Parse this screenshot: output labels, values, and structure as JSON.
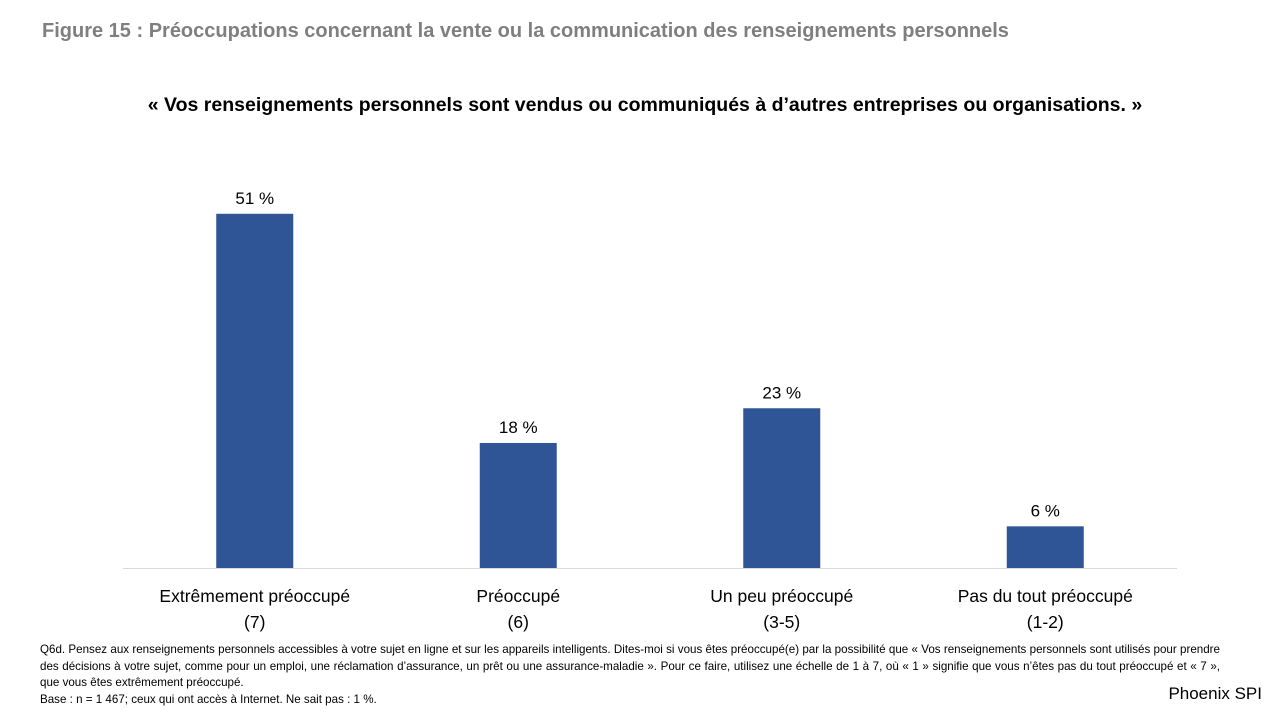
{
  "figure": {
    "title": "Figure 15 : Préoccupations concernant la vente ou la communication des renseignements personnels"
  },
  "chart_data": {
    "type": "bar",
    "title": "« Vos renseignements personnels sont vendus ou communiqués à d’autres entreprises ou organisations. »",
    "categories": [
      [
        "Extrêmement préoccupé",
        "(7)"
      ],
      [
        "Préoccupé",
        "(6)"
      ],
      [
        "Un peu préoccupé",
        "(3-5)"
      ],
      [
        "Pas du tout préoccupé",
        "(1-2)"
      ]
    ],
    "values": [
      51,
      18,
      23,
      6
    ],
    "value_labels": [
      "51 %",
      "18 %",
      "23 %",
      "6 %"
    ],
    "unit": "%",
    "ylim": [
      0,
      55
    ],
    "grid": false,
    "legend": "none",
    "bar_color": "#2f5597",
    "axis_color": "#d9d9d9"
  },
  "footnote": {
    "question": "Q6d. Pensez aux renseignements personnels accessibles à votre sujet en ligne et sur les appareils intelligents. Dites-moi si vous êtes préoccupé(e) par la possibilité que « Vos renseignements personnels sont utilisés pour prendre des décisions à votre sujet, comme pour un emploi, une réclamation d’assurance, un prêt ou une assurance-maladie ». Pour ce faire, utilisez une échelle de 1 à 7, où « 1 » signifie que vous n’êtes pas du tout préoccupé et « 7 », que vous êtes extrêmement préoccupé.",
    "base": "Base : n = 1 467; ceux qui ont accès à Internet. Ne sait pas : 1 %."
  },
  "brand": {
    "name": "Phoenix SPI"
  }
}
